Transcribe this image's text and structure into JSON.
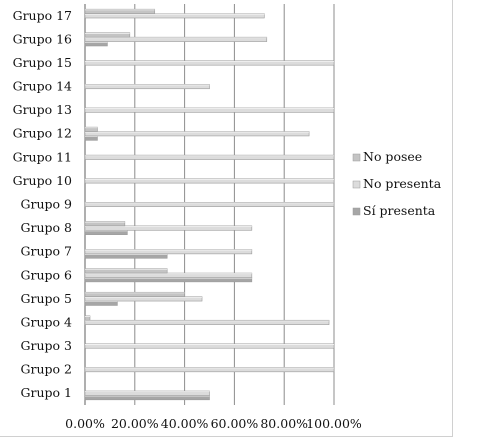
{
  "chart_data": {
    "type": "bar",
    "orientation": "horizontal",
    "categories": [
      "Grupo 1",
      "Grupo 2",
      "Grupo 3",
      "Grupo 4",
      "Grupo 5",
      "Grupo 6",
      "Grupo 7",
      "Grupo 8",
      "Grupo 9",
      "Grupo 10",
      "Grupo 11",
      "Grupo 12",
      "Grupo 13",
      "Grupo 14",
      "Grupo 15",
      "Grupo 16",
      "Grupo 17"
    ],
    "series": [
      {
        "name": "No posee",
        "color": "#c4c4c4",
        "values": [
          0,
          0,
          0,
          2,
          40,
          33,
          0,
          16,
          0,
          0,
          0,
          5,
          0,
          0,
          0,
          18,
          28
        ]
      },
      {
        "name": "No presenta",
        "color": "#dcdcdc",
        "values": [
          50,
          100,
          100,
          98,
          47,
          67,
          67,
          67,
          100,
          100,
          100,
          90,
          100,
          50,
          100,
          73,
          72
        ]
      },
      {
        "name": "Sí presenta",
        "color": "#a6a6a6",
        "values": [
          50,
          0,
          0,
          0,
          13,
          67,
          33,
          17,
          0,
          0,
          0,
          5,
          0,
          0,
          0,
          9,
          0
        ]
      }
    ],
    "x_ticks": [
      "0.00%",
      "20.00%",
      "40.00%",
      "60.00%",
      "80.00%",
      "100.00%"
    ],
    "xlim": [
      0,
      100
    ],
    "grid": true,
    "legend_position": "right"
  }
}
